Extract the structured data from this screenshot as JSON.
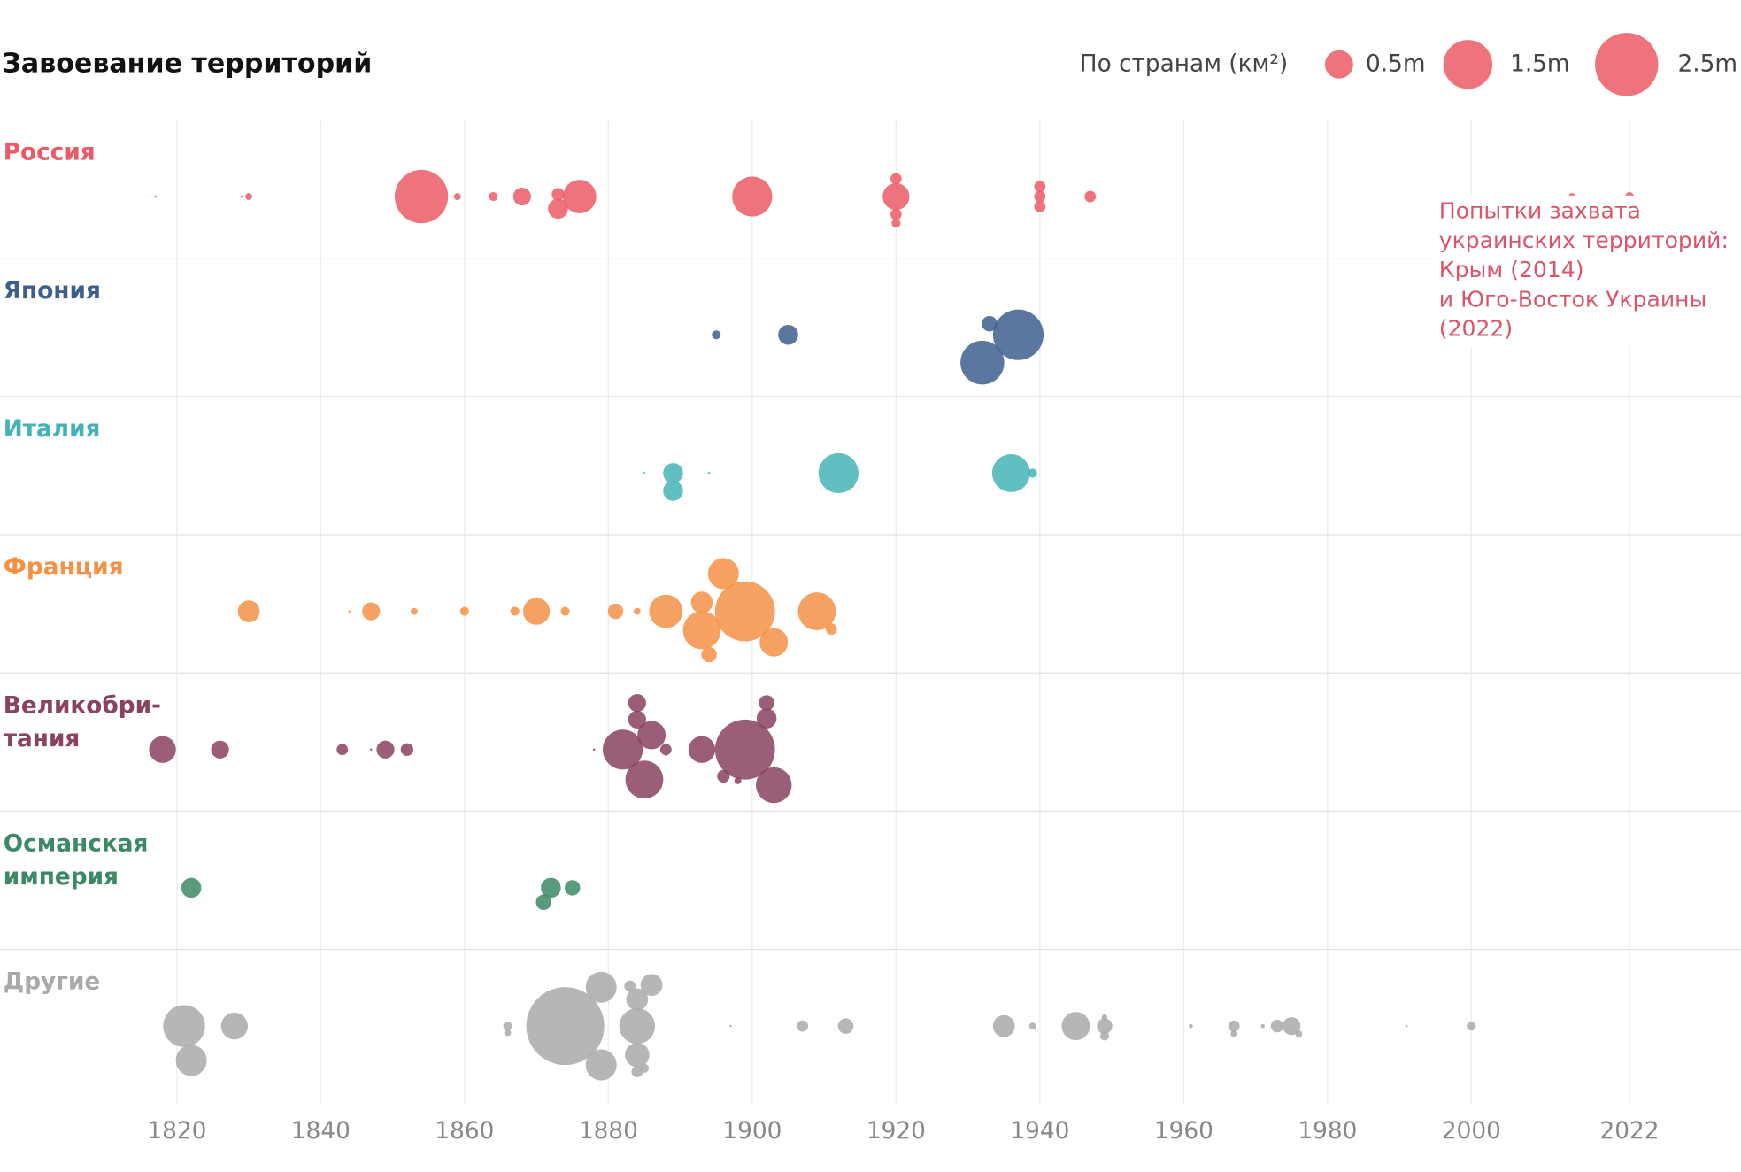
{
  "chart_data": {
    "type": "bubble",
    "title": "Завоевание территорий",
    "legend_title": "По странам (км²)",
    "legend_sizes": [
      {
        "value": 0.5,
        "label": "0.5m"
      },
      {
        "value": 1.5,
        "label": "1.5m"
      },
      {
        "value": 2.5,
        "label": "2.5m"
      }
    ],
    "xlim": [
      1795.4,
      2037.5
    ],
    "xticks": [
      1820,
      1840,
      1860,
      1880,
      1900,
      1920,
      1940,
      1960,
      1980,
      2000,
      2022
    ],
    "grid": true,
    "series": [
      {
        "name_lines": [
          "Россия"
        ],
        "color": "#ec5a66",
        "x": [
          1817,
          1829,
          1830,
          1854,
          1859,
          1864,
          1868,
          1873,
          1873,
          1876,
          1900,
          1920,
          1920,
          1920,
          1920,
          1940,
          1940,
          1940,
          1947,
          2014,
          2022
        ],
        "sizes": [
          0.003,
          0.003,
          0.03,
          1.78,
          0.03,
          0.05,
          0.2,
          0.1,
          0.25,
          0.7,
          1.0,
          0.45,
          0.08,
          0.05,
          0.08,
          0.08,
          0.08,
          0.08,
          0.08,
          0.03,
          0.05
        ]
      },
      {
        "name_lines": [
          "Япония"
        ],
        "color": "#3e5e8e",
        "x": [
          1895,
          1905,
          1932,
          1933,
          1937
        ],
        "sizes": [
          0.05,
          0.25,
          1.2,
          0.15,
          1.6
        ]
      },
      {
        "name_lines": [
          "Италия"
        ],
        "color": "#45b3b6",
        "x": [
          1885,
          1889,
          1889,
          1894,
          1912,
          1914,
          1936,
          1939
        ],
        "sizes": [
          0.003,
          0.25,
          0.25,
          0.003,
          1.0,
          0.003,
          0.9,
          0.05
        ]
      },
      {
        "name_lines": [
          "Франция"
        ],
        "color": "#f59145",
        "x": [
          1830,
          1844,
          1847,
          1853,
          1860,
          1867,
          1870,
          1874,
          1881,
          1884,
          1888,
          1893,
          1893,
          1894,
          1896,
          1899,
          1903,
          1907,
          1909,
          1911
        ],
        "sizes": [
          0.3,
          0.003,
          0.2,
          0.03,
          0.05,
          0.05,
          0.45,
          0.05,
          0.15,
          0.03,
          0.7,
          0.3,
          0.9,
          0.15,
          0.6,
          2.25,
          0.5,
          0.003,
          0.9,
          0.08
        ]
      },
      {
        "name_lines": [
          "Великобри-",
          "тания"
        ],
        "color": "#8a4262",
        "x": [
          1818,
          1826,
          1843,
          1847,
          1849,
          1852,
          1878,
          1882,
          1884,
          1884,
          1885,
          1886,
          1888,
          1888,
          1893,
          1896,
          1898,
          1899,
          1902,
          1902,
          1903
        ],
        "sizes": [
          0.45,
          0.2,
          0.08,
          0.003,
          0.2,
          0.1,
          0.003,
          1.0,
          0.2,
          0.2,
          0.9,
          0.5,
          0.08,
          0.003,
          0.45,
          0.1,
          0.03,
          2.25,
          0.25,
          0.15,
          0.8
        ]
      },
      {
        "name_lines": [
          "Османская",
          "империя"
        ],
        "color": "#3d8866",
        "x": [
          1822,
          1871,
          1872,
          1875
        ],
        "sizes": [
          0.25,
          0.15,
          0.25,
          0.15
        ]
      },
      {
        "name_lines": [
          "Другие"
        ],
        "color": "#a9a9a9",
        "x": [
          1821,
          1822,
          1828,
          1866,
          1866,
          1874,
          1879,
          1879,
          1883,
          1884,
          1884,
          1884,
          1884,
          1885,
          1886,
          1897,
          1907,
          1913,
          1935,
          1939,
          1945,
          1949,
          1949,
          1949,
          1961,
          1967,
          1967,
          1971,
          1973,
          1975,
          1976,
          1991,
          2000
        ],
        "sizes": [
          1.1,
          0.6,
          0.45,
          0.05,
          0.03,
          3.8,
          0.6,
          0.6,
          0.08,
          0.37,
          0.8,
          0.08,
          0.3,
          0.05,
          0.3,
          0.003,
          0.08,
          0.15,
          0.3,
          0.03,
          0.5,
          0.05,
          0.15,
          0.02,
          0.01,
          0.08,
          0.03,
          0.01,
          0.1,
          0.2,
          0.03,
          0.003,
          0.05
        ]
      }
    ],
    "annotation_lines": [
      "Попытки захвата",
      "украинских территорий:",
      "Крым (2014)",
      "и Юго-Восток Украины",
      "(2022)"
    ]
  }
}
